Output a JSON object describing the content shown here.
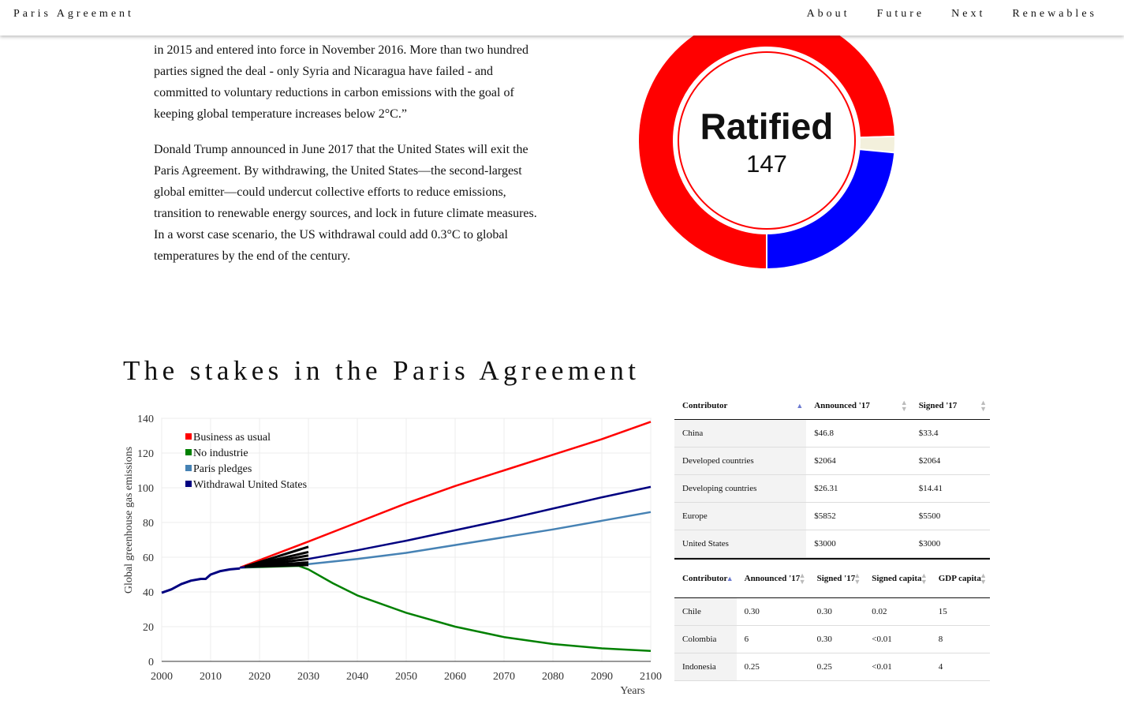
{
  "nav": {
    "brand": "Paris Agreement",
    "links": [
      "About",
      "Future",
      "Next",
      "Renewables"
    ]
  },
  "intro": {
    "p1": "in 2015 and entered into force in November 2016. More than two hundred parties signed the deal - only Syria and Nicaragua have failed - and committed to voluntary reductions in carbon emissions with the goal of keeping global temperature increases below 2°C.”",
    "p2": "Donald Trump announced in June 2017 that the United States will exit the Paris Agreement. By withdrawing, the United States—the second-largest global emitter—could undercut collective efforts to reduce emissions, transition to renewable energy sources, and lock in future climate measures. In a worst case scenario, the US withdrawal could add 0.3°C to global temperatures by the end of the century."
  },
  "donut": {
    "label": "Ratified",
    "value": "147",
    "segments": [
      {
        "name": "ratified",
        "fraction": 0.745,
        "color": "#ff0000"
      },
      {
        "name": "gap",
        "fraction": 0.02,
        "color": "#f3f0dc"
      },
      {
        "name": "other",
        "fraction": 0.235,
        "color": "#0000ff"
      }
    ]
  },
  "headline": "The stakes in the Paris Agreement",
  "chart_data": {
    "type": "line",
    "ylabel": "Global greenhouse gas emissions",
    "xlabel": "Years",
    "xlim": [
      2000,
      2100
    ],
    "ylim": [
      0,
      140
    ],
    "xticks": [
      2000,
      2010,
      2020,
      2030,
      2040,
      2050,
      2060,
      2070,
      2080,
      2090,
      2100
    ],
    "yticks": [
      0,
      20,
      40,
      60,
      80,
      100,
      120,
      140
    ],
    "legend_position": "top-left",
    "history": {
      "color": "#000080",
      "x": [
        2000,
        2002,
        2004,
        2006,
        2008,
        2009,
        2010,
        2012,
        2014,
        2016
      ],
      "y": [
        39.5,
        41.5,
        44.5,
        46.5,
        47.5,
        47.5,
        50,
        52,
        53,
        53.5
      ]
    },
    "series": [
      {
        "name": "Business as usual",
        "color": "#ff0000",
        "x": [
          2016,
          2030,
          2040,
          2050,
          2060,
          2070,
          2080,
          2090,
          2100
        ],
        "y": [
          54,
          69,
          80,
          91,
          101,
          110,
          119,
          128,
          138
        ]
      },
      {
        "name": "No industrie",
        "color": "#008000",
        "x": [
          2016,
          2028,
          2030,
          2035,
          2040,
          2050,
          2060,
          2070,
          2080,
          2090,
          2100
        ],
        "y": [
          54,
          55,
          53,
          45,
          38,
          28,
          20,
          14,
          10,
          7.5,
          6
        ]
      },
      {
        "name": "Paris pledges",
        "color": "#4682b4",
        "x": [
          2016,
          2030,
          2040,
          2050,
          2060,
          2070,
          2080,
          2090,
          2100
        ],
        "y": [
          54,
          56,
          59,
          62.5,
          67,
          71.5,
          76,
          81,
          86
        ]
      },
      {
        "name": "Withdrawal United States",
        "color": "#000080",
        "x": [
          2016,
          2030,
          2040,
          2050,
          2060,
          2070,
          2080,
          2090,
          2100
        ],
        "y": [
          54,
          59,
          64,
          69.5,
          75.5,
          81.5,
          88,
          94.5,
          100.5
        ]
      }
    ],
    "fan": {
      "color": "#000000",
      "x0": 2017,
      "y0": 54.5,
      "x1": 2030,
      "y1": [
        66,
        63,
        61,
        59,
        57,
        55.5
      ]
    }
  },
  "table1": {
    "headers": [
      "Contributor",
      "Announced '17",
      "Signed '17"
    ],
    "rows": [
      [
        "China",
        "$46.8",
        "$33.4"
      ],
      [
        "Developed countries",
        "$2064",
        "$2064"
      ],
      [
        "Developing countries",
        "$26.31",
        "$14.41"
      ],
      [
        "Europe",
        "$5852",
        "$5500"
      ],
      [
        "United States",
        "$3000",
        "$3000"
      ]
    ]
  },
  "table2": {
    "headers": [
      "Contributor",
      "Announced '17",
      "Signed '17",
      "Signed capita",
      "GDP capita"
    ],
    "rows": [
      [
        "Chile",
        "0.30",
        "0.30",
        "0.02",
        "15"
      ],
      [
        "Colombia",
        "6",
        "0.30",
        "<0.01",
        "8"
      ],
      [
        "Indonesia",
        "0.25",
        "0.25",
        "<0.01",
        "4"
      ]
    ]
  }
}
